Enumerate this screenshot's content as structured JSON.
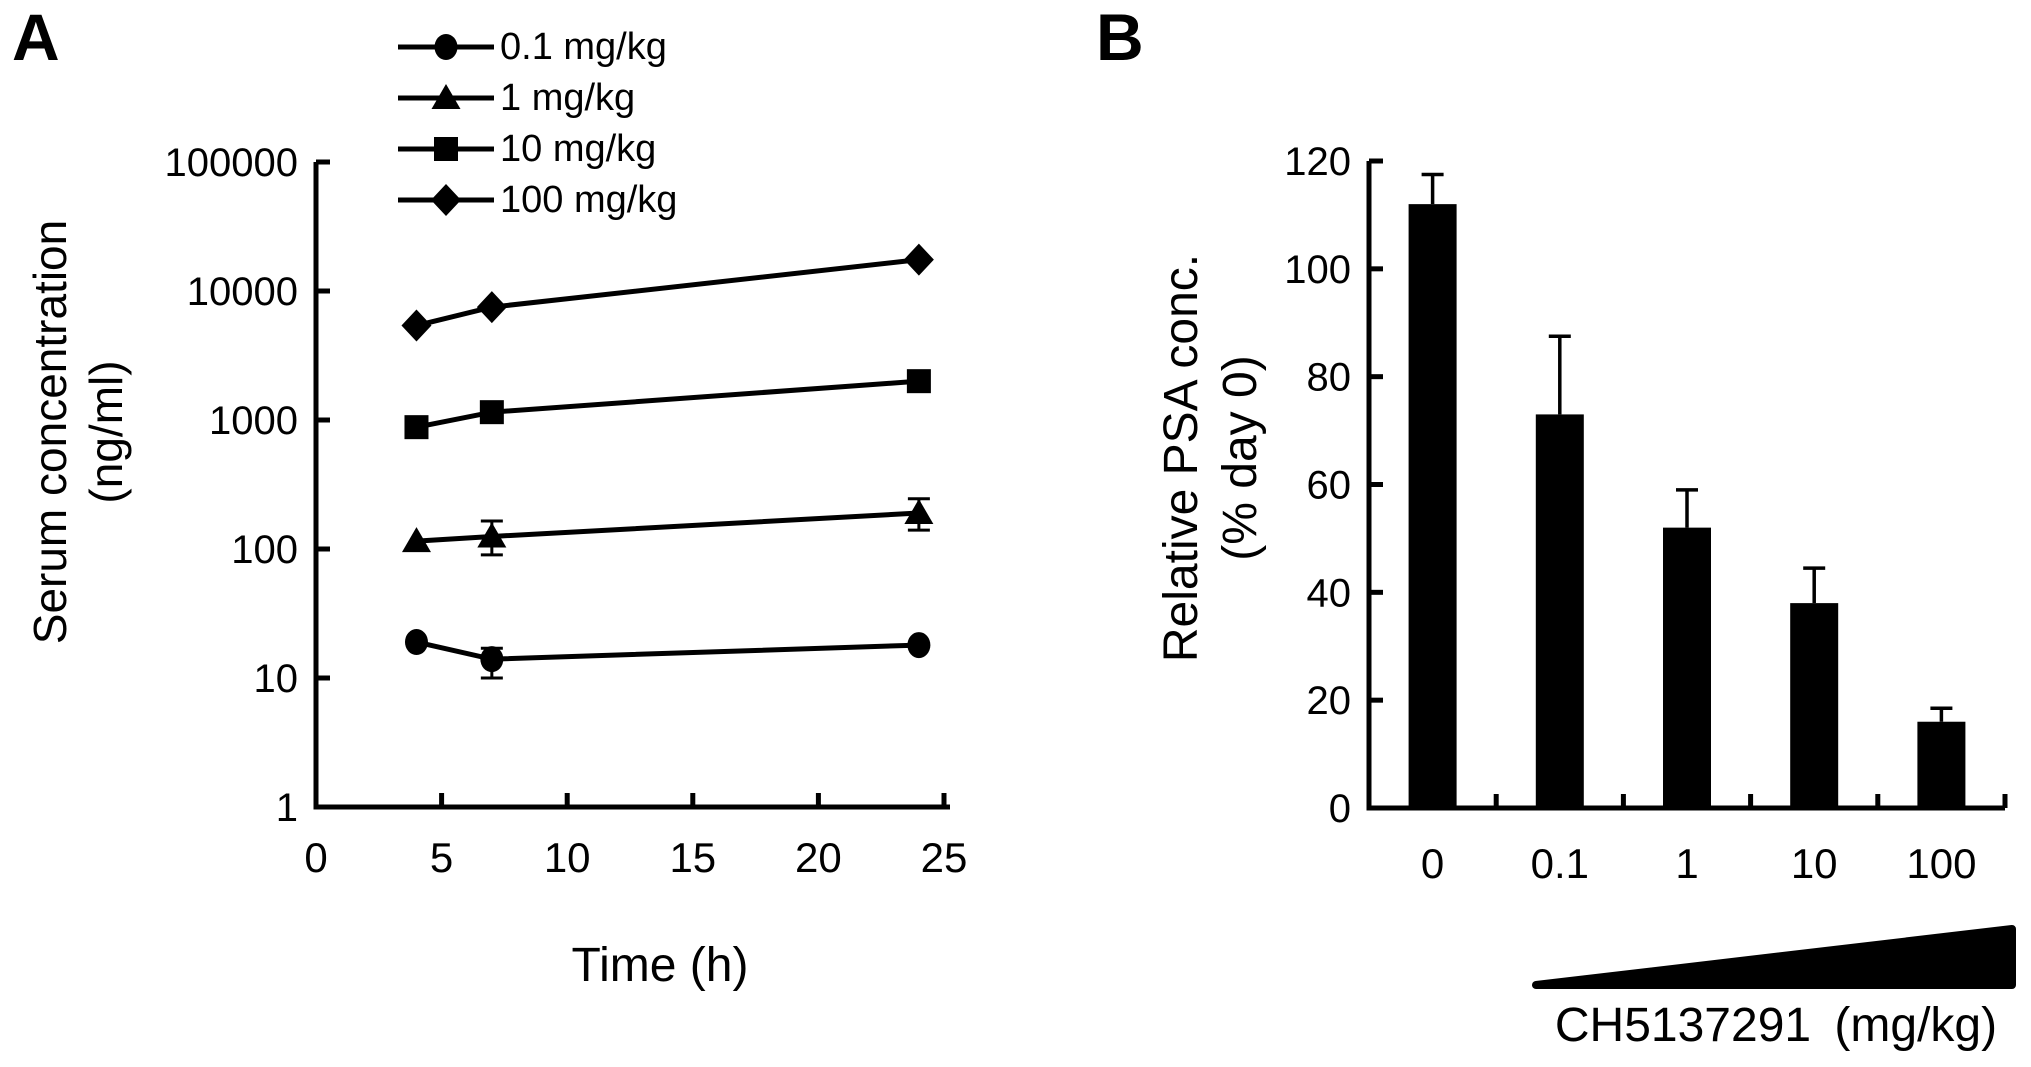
{
  "page": {
    "background": "#ffffff",
    "ink": "#000000"
  },
  "panel_a": {
    "letter": "A",
    "y_axis_title_line1": "Serum concentration",
    "y_axis_title_line2": "(ng/ml)",
    "x_axis_title": "Time (h)"
  },
  "panel_b": {
    "letter": "B",
    "y_axis_title_line1": "Relative PSA conc.",
    "y_axis_title_line2": "(% day 0)",
    "x_axis_title": "CH5137291 (mg/kg)"
  },
  "chart_data": [
    {
      "id": "A",
      "type": "line",
      "title": "",
      "xlabel": "Time (h)",
      "ylabel": "Serum concentration (ng/ml)",
      "y_scale": "log10",
      "ylim": [
        1,
        100000
      ],
      "y_ticks": [
        1,
        10,
        100,
        1000,
        10000,
        100000
      ],
      "xlim": [
        0,
        25
      ],
      "x_ticks": [
        0,
        5,
        10,
        15,
        20,
        25
      ],
      "x": [
        4,
        7,
        24
      ],
      "grid": false,
      "legend_position": "top-inside",
      "series": [
        {
          "name": "0.1 mg/kg",
          "marker": "circle",
          "values": [
            19,
            14,
            18
          ],
          "err_lo": [
            null,
            10,
            null
          ],
          "err_hi": [
            null,
            17,
            null
          ]
        },
        {
          "name": "1 mg/kg",
          "marker": "triangle",
          "values": [
            115,
            125,
            190
          ],
          "err_lo": [
            null,
            90,
            140
          ],
          "err_hi": [
            null,
            165,
            245
          ]
        },
        {
          "name": "10 mg/kg",
          "marker": "square",
          "values": [
            880,
            1150,
            2000
          ],
          "err_lo": [
            null,
            null,
            null
          ],
          "err_hi": [
            null,
            null,
            null
          ]
        },
        {
          "name": "100 mg/kg",
          "marker": "diamond",
          "values": [
            5400,
            7500,
            17500
          ],
          "err_lo": [
            null,
            null,
            null
          ],
          "err_hi": [
            null,
            null,
            null
          ]
        }
      ]
    },
    {
      "id": "B",
      "type": "bar",
      "title": "",
      "xlabel": "CH5137291 (mg/kg)",
      "ylabel": "Relative PSA conc. (% day 0)",
      "categories": [
        "0",
        "0.1",
        "1",
        "10",
        "100"
      ],
      "values": [
        112,
        73,
        52,
        38,
        16
      ],
      "err_hi": [
        117.5,
        87.5,
        59,
        44.5,
        18.5
      ],
      "ylim": [
        0,
        120
      ],
      "y_ticks": [
        0,
        20,
        40,
        60,
        80,
        100,
        120
      ],
      "grid": false,
      "bar_color": "#000000"
    }
  ]
}
